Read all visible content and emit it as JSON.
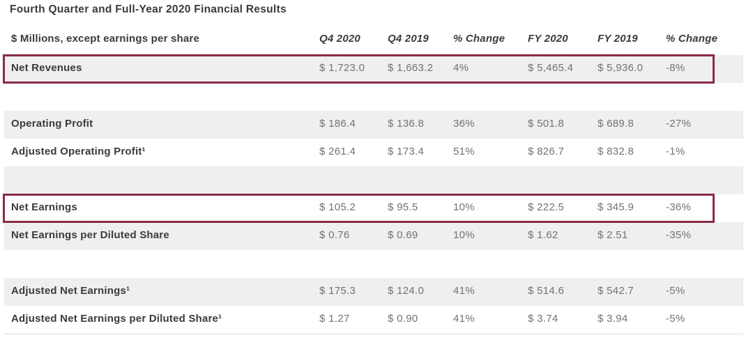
{
  "title": "Fourth Quarter and Full-Year 2020 Financial Results",
  "table": {
    "unit_label": "$ Millions, except earnings per share",
    "columns": [
      "Q4 2020",
      "Q4 2019",
      "% Change",
      "FY 2020",
      "FY 2019",
      "% Change"
    ],
    "rows": [
      {
        "label": "Net Revenues",
        "highlighted": true,
        "values": [
          "$ 1,723.0",
          "$ 1,663.2",
          "4%",
          "$ 5,465.4",
          "$ 5,936.0",
          "-8%"
        ]
      },
      {
        "label": "Operating Profit",
        "highlighted": false,
        "values": [
          "$ 186.4",
          "$ 136.8",
          "36%",
          "$ 501.8",
          "$ 689.8",
          "-27%"
        ]
      },
      {
        "label": "Adjusted Operating Profit¹",
        "highlighted": false,
        "values": [
          "$ 261.4",
          "$ 173.4",
          "51%",
          "$ 826.7",
          "$ 832.8",
          "-1%"
        ]
      },
      {
        "label": "Net Earnings",
        "highlighted": true,
        "values": [
          "$ 105.2",
          "$ 95.5",
          "10%",
          "$ 222.5",
          "$ 345.9",
          "-36%"
        ]
      },
      {
        "label": "Net Earnings per Diluted Share",
        "highlighted": false,
        "values": [
          "$ 0.76",
          "$ 0.69",
          "10%",
          "$ 1.62",
          "$ 2.51",
          "-35%"
        ]
      },
      {
        "label": "Adjusted Net Earnings¹",
        "highlighted": false,
        "values": [
          "$ 175.3",
          "$ 124.0",
          "41%",
          "$ 514.6",
          "$ 542.7",
          "-5%"
        ]
      },
      {
        "label": "Adjusted Net Earnings per Diluted Share¹",
        "highlighted": false,
        "values": [
          "$ 1.27",
          "$ 0.90",
          "41%",
          "$ 3.74",
          "$ 3.94",
          "-5%"
        ]
      }
    ],
    "highlighted_rows": [
      "Net Revenues",
      "Net Earnings"
    ],
    "colors": {
      "highlight_border": "#8a2b43",
      "row_shade": "#f0eff0",
      "label_text": "#3b3b3b",
      "value_text": "#727272"
    }
  }
}
